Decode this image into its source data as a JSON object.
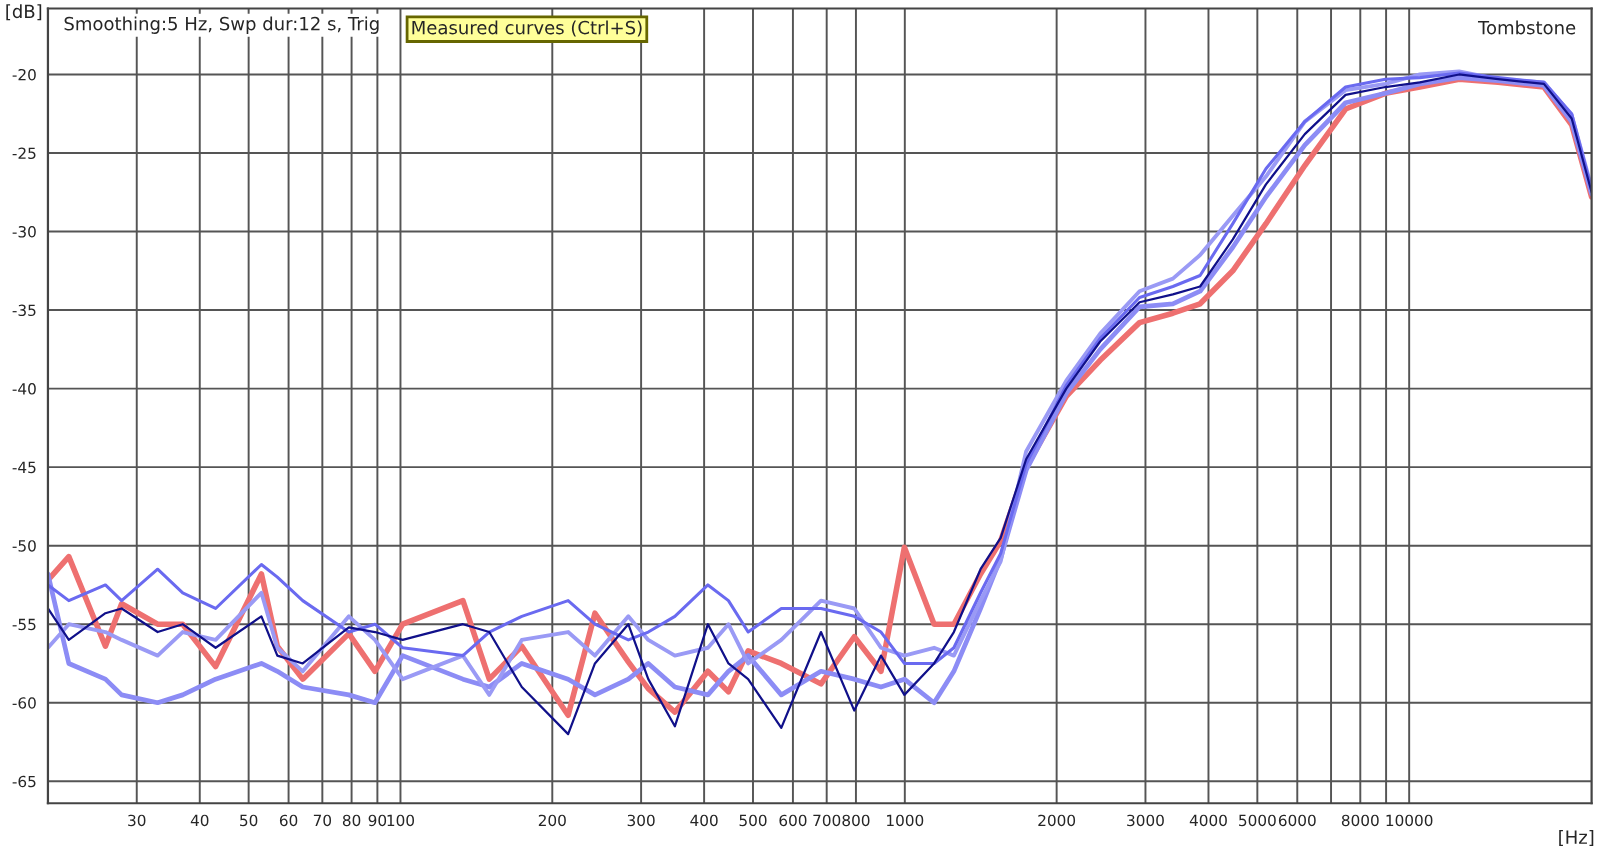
{
  "chart_data": {
    "type": "line",
    "title": "Smoothing:5 Hz, Swp dur:12 s, Trig",
    "xlabel": "[Hz]",
    "ylabel": "[dB]",
    "annotations": [
      "Measured curves (Ctrl+S)",
      "Tombstone"
    ],
    "log": "x",
    "grid": true,
    "legend": false,
    "marker": "none",
    "line_style": "solid",
    "xlim": [
      20,
      23000
    ],
    "ylim": [
      -66.4,
      -15.8
    ],
    "xticks": [
      30,
      40,
      50,
      60,
      70,
      80,
      90,
      100,
      200,
      300,
      400,
      500,
      600,
      700,
      800,
      1000,
      2000,
      3000,
      4000,
      5000,
      6000,
      {
        "value": 7000,
        "label": null
      },
      8000,
      {
        "value": 9000,
        "label": null
      },
      10000
    ],
    "yticks": [
      -65,
      -60,
      -55,
      -50,
      -45,
      -40,
      -35,
      -30,
      -25,
      -20
    ],
    "x": [
      20,
      22,
      26,
      28,
      33,
      37,
      43,
      53,
      57,
      64,
      79,
      89,
      101,
      133,
      150,
      174,
      215,
      243,
      283,
      310,
      350,
      407,
      447,
      489,
      569,
      682,
      794,
      897,
      998,
      1143,
      1251,
      1413,
      1549,
      1740,
      2090,
      2440,
      2920,
      3400,
      3850,
      4470,
      5200,
      6210,
      7480,
      8970,
      10500,
      12560,
      15000,
      18500,
      21000,
      23000
    ],
    "series": [
      {
        "color": "#ee7070",
        "values": [
          -52.2,
          -50.7,
          -56.4,
          -53.7,
          -55.0,
          -55.0,
          -57.7,
          -51.8,
          -56.4,
          -58.5,
          -55.6,
          -58.0,
          -55.0,
          -53.5,
          -58.5,
          -56.4,
          -60.8,
          -54.3,
          -57.4,
          -59.1,
          -60.6,
          -58.0,
          -59.3,
          -56.7,
          -57.5,
          -58.8,
          -55.8,
          -58.0,
          -50.1,
          -55.0,
          -55.0,
          -51.8,
          -49.7,
          -45.0,
          -40.5,
          -38.2,
          -35.8,
          -35.2,
          -34.6,
          -32.5,
          -29.5,
          -25.8,
          -22.2,
          -21.2,
          -20.8,
          -20.3,
          -20.5,
          -20.8,
          -23.2,
          -27.8
        ]
      },
      {
        "color": "#8c8cf5",
        "values": [
          -51.8,
          -57.5,
          -58.5,
          -59.5,
          -60.0,
          -59.5,
          -58.5,
          -57.5,
          -58.0,
          -59.0,
          -59.5,
          -60.0,
          -57.0,
          -58.5,
          -59.0,
          -57.5,
          -58.5,
          -59.5,
          -58.5,
          -57.5,
          -59.0,
          -59.5,
          -58.0,
          -57.0,
          -59.5,
          -58.0,
          -58.5,
          -59.0,
          -58.5,
          -60.0,
          -58.0,
          -54.0,
          -50.8,
          -45.2,
          -40.3,
          -37.5,
          -34.8,
          -34.6,
          -33.8,
          -31.0,
          -27.8,
          -24.5,
          -21.8,
          -21.2,
          -20.6,
          -20.2,
          -20.4,
          -20.7,
          -23.0,
          -27.6
        ]
      },
      {
        "color": "#9a9af5",
        "values": [
          -56.5,
          -55.0,
          -55.5,
          -56.0,
          -57.0,
          -55.5,
          -56.0,
          -53.0,
          -56.5,
          -58.0,
          -54.5,
          -56.0,
          -58.5,
          -57.0,
          -59.5,
          -56.0,
          -55.5,
          -57.0,
          -54.5,
          -56.0,
          -57.0,
          -56.5,
          -55.0,
          -57.5,
          -56.0,
          -53.5,
          -54.0,
          -56.5,
          -57.0,
          -56.5,
          -57.0,
          -53.5,
          -51.0,
          -44.0,
          -39.5,
          -36.5,
          -33.8,
          -33.0,
          -31.5,
          -29.0,
          -26.5,
          -23.0,
          -21.0,
          -20.6,
          -20.0,
          -19.8,
          -20.3,
          -20.5,
          -22.6,
          -27.2
        ]
      },
      {
        "color": "#6a6af0",
        "values": [
          -52.5,
          -53.5,
          -52.5,
          -53.5,
          -51.5,
          -53.0,
          -54.0,
          -51.2,
          -52.0,
          -53.5,
          -55.5,
          -55.0,
          -56.5,
          -57.0,
          -55.5,
          -54.5,
          -53.5,
          -55.0,
          -56.0,
          -55.5,
          -54.5,
          -52.5,
          -53.5,
          -55.5,
          -54.0,
          -54.0,
          -54.5,
          -55.5,
          -57.5,
          -57.5,
          -56.5,
          -53.0,
          -50.5,
          -44.8,
          -39.8,
          -36.8,
          -34.2,
          -33.5,
          -32.8,
          -29.5,
          -26.0,
          -23.0,
          -20.8,
          -20.3,
          -20.2,
          -19.9,
          -20.2,
          -20.5,
          -22.5,
          -27.3
        ]
      },
      {
        "color": "#10108a",
        "values": [
          -54.0,
          -56.0,
          -54.3,
          -54.0,
          -55.5,
          -55.0,
          -56.5,
          -54.5,
          -57.0,
          -57.5,
          -55.2,
          -55.5,
          -56.0,
          -55.0,
          -55.5,
          -59.0,
          -62.0,
          -57.5,
          -55.0,
          -58.5,
          -61.5,
          -55.0,
          -57.5,
          -58.5,
          -61.6,
          -55.5,
          -60.5,
          -57.0,
          -59.5,
          -57.5,
          -55.5,
          -51.5,
          -49.5,
          -44.5,
          -40.0,
          -37.0,
          -34.5,
          -34.0,
          -33.5,
          -30.5,
          -27.0,
          -23.8,
          -21.3,
          -20.8,
          -20.5,
          -20.0,
          -20.3,
          -20.6,
          -22.8,
          -27.5
        ]
      }
    ]
  }
}
